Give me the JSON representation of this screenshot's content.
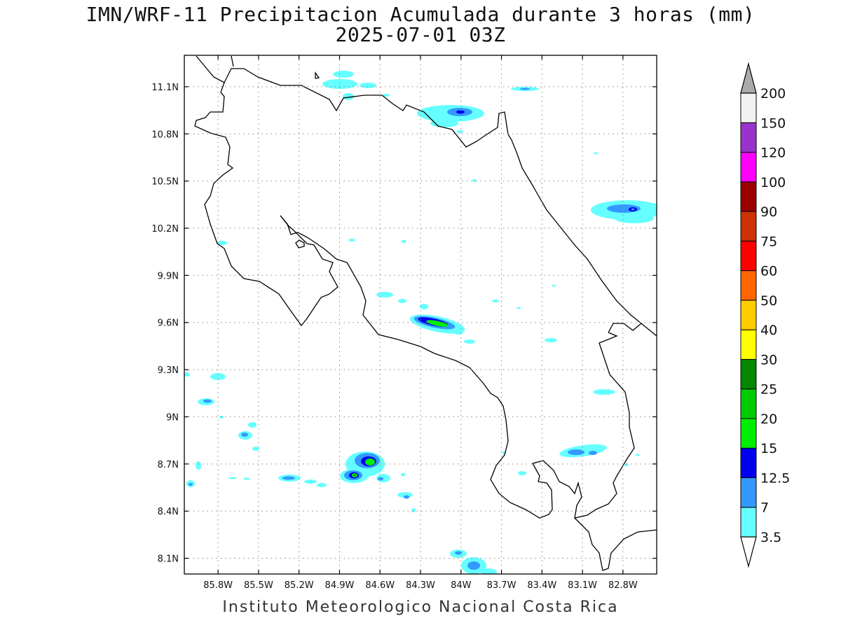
{
  "title": {
    "line1": "IMN/WRF-11 Precipitacion Acumulada durante 3 horas (mm)",
    "line2": "2025-07-01 03Z"
  },
  "footer": "Instituto Meteorologico Nacional Costa Rica",
  "map": {
    "lon_range": [
      -86.05,
      -82.55
    ],
    "lat_range": [
      8.0,
      11.3
    ],
    "lat_ticks": [
      {
        "label": "11.1N",
        "value": 11.1
      },
      {
        "label": "10.8N",
        "value": 10.8
      },
      {
        "label": "10.5N",
        "value": 10.5
      },
      {
        "label": "10.2N",
        "value": 10.2
      },
      {
        "label": "9.9N",
        "value": 9.9
      },
      {
        "label": "9.6N",
        "value": 9.6
      },
      {
        "label": "9.3N",
        "value": 9.3
      },
      {
        "label": "9N",
        "value": 9.0
      },
      {
        "label": "8.7N",
        "value": 8.7
      },
      {
        "label": "8.4N",
        "value": 8.4
      },
      {
        "label": "8.1N",
        "value": 8.1
      }
    ],
    "lon_ticks": [
      {
        "label": "85.8W",
        "value": -85.8
      },
      {
        "label": "85.5W",
        "value": -85.5
      },
      {
        "label": "85.2W",
        "value": -85.2
      },
      {
        "label": "84.9W",
        "value": -84.9
      },
      {
        "label": "84.6W",
        "value": -84.6
      },
      {
        "label": "84.3W",
        "value": -84.3
      },
      {
        "label": "84W",
        "value": -84.0
      },
      {
        "label": "83.7W",
        "value": -83.7
      },
      {
        "label": "83.4W",
        "value": -83.4
      },
      {
        "label": "83.1W",
        "value": -83.1
      },
      {
        "label": "82.8W",
        "value": -82.8
      }
    ],
    "grid": "dotted"
  },
  "colorbar": {
    "levels": [
      "3.5",
      "7",
      "12.5",
      "15",
      "20",
      "25",
      "30",
      "40",
      "50",
      "60",
      "75",
      "90",
      "100",
      "120",
      "150",
      "200"
    ],
    "colors": [
      "#66ffff",
      "#3399ff",
      "#0000ee",
      "#00ee00",
      "#00cc00",
      "#008800",
      "#ffff00",
      "#ffcc00",
      "#ff6600",
      "#ff0000",
      "#cc3300",
      "#990000",
      "#ff00ff",
      "#9933cc",
      "#f2f2f2",
      "#aaaaaa"
    ]
  }
}
